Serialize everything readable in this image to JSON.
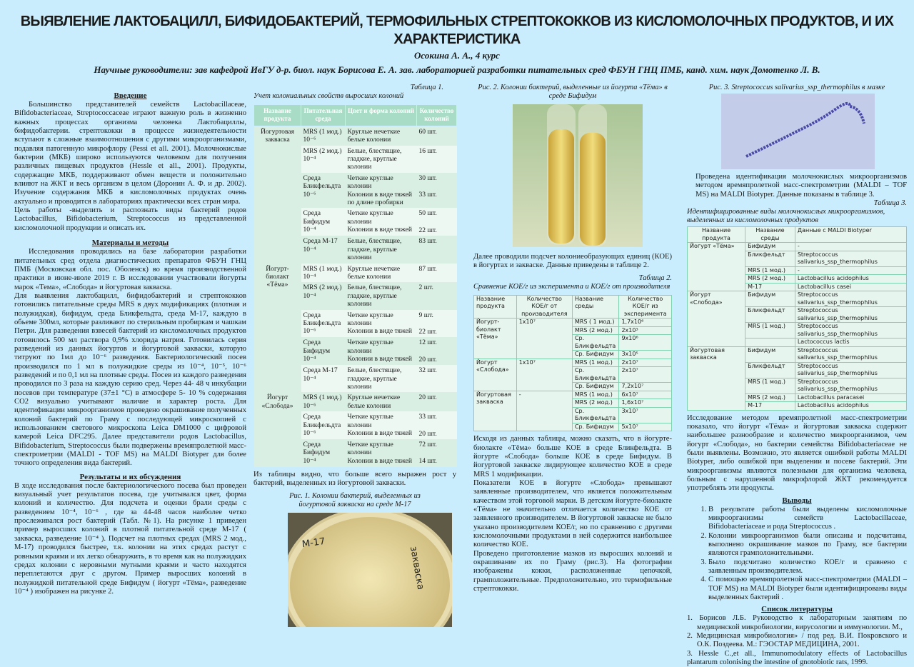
{
  "header": {
    "title": "ВЫЯВЛЕНИЕ ЛАКТОБАЦИЛЛ, БИФИДОБАКТЕРИЙ, ТЕРМОФИЛЬНЫХ СТРЕПТОКОККОВ ИЗ КИСЛОМОЛОЧНЫХ ПРОДУКТОВ, И ИХ ХАРАКТЕРИСТИКА",
    "author": "Осокина А. А., 4 курс",
    "supervisors": "Научные руководители: зав кафедрой ИвГУ  д-р. биол. наук   Борисова Е. А. зав. лабораторией разработки питательных сред ФБУН ГНЦ ПМБ, канд. хим. наук  Домотенко Л. В."
  },
  "intro": {
    "heading": "Введение",
    "p1": "Большинство представителей семейств Lactobacillaceae, Bifidobacteriaceae, Streptococcaceae играют важную роль в жизненно важных процессах организма человека Лактобациллы, бифидобактерии. стрептококки в процессе жизнедеятельности вступают в сложные взаимоотношения с другими микроорганизмами, подавляя патогенную микрофлору (Pessi et all. 2001). Молочнокислые бактерии (МКБ) широко используются человеком для получения различных пищевых продуктов (Hessle et all., 2001). Продукты, содержащие МКБ, поддерживают обмен веществ и положительно влияют на ЖКТ и весь организм в целом (Доронин А. Ф. и др. 2002). Изучение содержания МКБ в кисломолочных продуктах очень актуально и проводится в лабораториях практически всех стран мира.",
    "p2": "Цель работы -выделить и распознать виды бактерий родов Lactobacillus, Bifidobacterium, Streptococcus из представленной кисломолочной продукции и описать их."
  },
  "methods": {
    "heading": "Материалы и методы",
    "p1": "Исследования проводились на базе лаборатории разработки питательных сред отдела диагностических препаратов ФБУН ГНЦ ПМБ (Московская обл. пос. Оболенск) во время производственной практики в июне-июле 2019 г. В исследовании участвовали йогурты марок «Тема», «Слобода» и йогуртовая закваска.",
    "p2": "Для выявления лактобацилл, бифидобактерий и стрептококков готовились питательные среды MRS в двух модификациях (плотная и полужидкая), бифидум, среда Бликфельдта, среда М-17, каждую в обьеме 300мл, которые разливают по стерильным пробиркам и чашкам Петри. Для разведения взвесей бактерий из кисломолочных продуктов готовилось 500 мл раствора 0,9% хлорида натрия. Готовилась серия разведений из данных йогуртов и йогуртовой закваски, которую титруют по 1мл до 10⁻⁶ разведения. Бактериологический посев производился по 1 мл в полужидкие среды из 10⁻⁴, 10⁻⁵, 10⁻⁶ разведений и по 0,1 мл на плотные среды. Посев из каждого разведения проводился по 3 раза на каждую серию сред. Через 44- 48 ч инкубации посевов при температуре (37±1 °C) в атмосфере 5- 10 % содержания СО2 визуально учитывают наличие и характер роста. Для идентификации микроорганизмов проведено окрашивание полученных колоний бактерий по Граму с последующей микроскопией с использованием светового микроскопа Leica DM1000 с цифровой камерой Leica DFC295. Далее представители родов Lactobacillus, Bifidobacterium, Streptococcus были подвержены времяпролетной масс-спектрометрии (MALDI - TOF MS) на MALDI Biotyper для более точного определения вида бактерий."
  },
  "results": {
    "heading": "Результаты и их обсуждения",
    "p1": "В ходе исследования после бактериологического посева был проведен визуальный учет результатов посева, где учитывался цвет, форма колоний и количество. Для подсчета и оценки брали среды с разведением 10⁻⁴, 10⁻⁶ , где за 44-48 часов наиболее четко прослеживался рост бактерий (Табл. №1). На рисунке 1 приведен пример выросших колоний в плотной питательной среде М-17 ( закваска, разведение 10⁻⁴ ). Подсчет на плотных средах (MRS 2 мод., М-17) проводился  быстрее, т.к. колонии на этих средах растут с ровными краями и их легко обнаружить, в то время как на полужидких средах колонии с неровными мутными краями и часто находятся переплетаются друг с другом. Пример выросших колоний в полужидкой питательной среде Бифидум ( йогурт «Тёма», разведение 10⁻⁴ ) изображен на рисунке 2."
  },
  "table1": {
    "label": "Таблица 1.",
    "caption": "Учет колониальных свойств выросших колоний",
    "headers": [
      "Название продукта",
      "Питательная среда",
      "Цвет и форма колоний",
      "Количество колоний"
    ],
    "groups": [
      {
        "product": "Йогуртовая закваска",
        "rows": [
          {
            "medium": "MRS (1 мод.) 10⁻⁶",
            "desc": [
              "Круглые  нечеткие белые колонии"
            ],
            "count": [
              "60 шт."
            ]
          },
          {
            "medium": "MRS (2 мод.) 10⁻⁴",
            "desc": [
              "Белые, блестящие, гладкие, круглые колонии"
            ],
            "count": [
              "16 шт."
            ]
          },
          {
            "medium": "Среда Бликфельдта 10⁻⁶",
            "desc": [
              "Четкие круглые колонии",
              "Колонии в виде тяжей по длине пробирки"
            ],
            "count": [
              "30 шт.",
              "33 шт."
            ]
          },
          {
            "medium": "Среда Бифидум 10⁻⁴",
            "desc": [
              "Четкие круглые колонии",
              "Колонии в виде тяжей"
            ],
            "count": [
              "50 шт.",
              "22 шт."
            ]
          },
          {
            "medium": "Среда М-17 10⁻⁴",
            "desc": [
              "Белые, блестящие, гладкие, круглые колонии"
            ],
            "count": [
              "83 шт."
            ]
          }
        ]
      },
      {
        "product": "Йогурт-биолакт «Тёма»",
        "rows": [
          {
            "medium": "MRS (1 мод.) 10⁻⁴",
            "desc": [
              "Круглые  нечеткие белые колонии"
            ],
            "count": [
              "87 шт."
            ]
          },
          {
            "medium": "MRS (2 мод.) 10⁻⁴",
            "desc": [
              "Белые, блестящие, гладкие, круглые колонии"
            ],
            "count": [
              "2 шт."
            ]
          },
          {
            "medium": "Среда Бликфельдта 10⁻⁶",
            "desc": [
              "Четкие круглые колонии",
              "Колонии в виде тяжей"
            ],
            "count": [
              "9 шт.",
              "22 шт."
            ]
          },
          {
            "medium": "Среда Бифидум 10⁻⁴",
            "desc": [
              "Четкие круглые колонии",
              "Колонии в виде тяжей"
            ],
            "count": [
              "12 шт.",
              "20 шт."
            ]
          },
          {
            "medium": "Среда М-17 10⁻⁴",
            "desc": [
              "Белые, блестящие, гладкие, круглые колонии"
            ],
            "count": [
              "32 шт."
            ]
          }
        ]
      },
      {
        "product": "Йогурт «Слобода»",
        "rows": [
          {
            "medium": "MRS (1 мод.) 10⁻⁶",
            "desc": [
              "Круглые  нечеткие белые колонии"
            ],
            "count": [
              "20 шт."
            ]
          },
          {
            "medium": "Среда Бликфельдта 10⁻⁶",
            "desc": [
              "Четкие круглые колонии",
              "Колонии в виде тяжей"
            ],
            "count": [
              "33 шт.",
              "20 шт."
            ]
          },
          {
            "medium": "Среда Бифидум 10⁻⁴",
            "desc": [
              "Четкие круглые колонии",
              "Колонии в виде тяжей"
            ],
            "count": [
              "72 шт.",
              "14 шт."
            ]
          }
        ]
      }
    ]
  },
  "col2": {
    "after_table": "Из таблицы видно, что  больше всего выражен рост у бактерий, выделенных из йогуртовой закваски.",
    "fig1_caption": "Рис.  1.  Колонии бактерий, выделенных из йогуртовой закваски на среде М-17",
    "fig1_labels": [
      "М-17",
      "закваска"
    ]
  },
  "col3": {
    "fig2_caption": "Рис. 2. Колонии бактерий, выделенные из йогурта «Тёма» в среде Бифидум",
    "p1": "Далее проводили  подсчет колониеобразующих единиц (КОЕ) в йогуртах и закваске. Данные приведены в таблице 2.",
    "table2_label": "Таблица 2.",
    "table2_caption": "Сравнение КОЕ/г из эксперимента и КОЕ/г от производителя",
    "p2": "Исходя из данных таблицы, можно сказать, что в йогурте-биолакте  «Тёма» больше  КОЕ в среде Бликфельдта. В йогурте «Слобода» больше КОЕ в среде Бифидум. В йогуртовой закваске лидирующее количество КОЕ в среде MRS 1 модификации.",
    "p3": "Показатели КОЕ в йогурте «Слобода» превышают заявленные производителем, что является положительным качеством этой торговой марки. В детском йогурте-биолакте «Тёма» не значительно отличается количество КОЕ от заявленного производителем. В йогуртовой закваске не было указано производителем КОЕ/г,  но по сравнению с другими кисломолочными продуктами в ней содержится наибольшее количество КОЕ.",
    "p4": "Проведено приготовление мазков из выросших колоний и окрашивание их по Граму (рис.3). На фотографии изображены кокки, расположенные цепочкой, грамположительные. Предположительно, это термофильные стрептококки."
  },
  "table2": {
    "headers": [
      "Название продукта",
      "Количество КОЕ/г от производителя",
      "Название среды",
      "Количество КОЕ/г из эксперимента"
    ],
    "groups": [
      {
        "product": "Йогурт-биолакт «Тёма»",
        "declared": "1x10⁷",
        "rows": [
          [
            "MRS ( 1 мод.)",
            "1,7x10⁶"
          ],
          [
            "MRS (2 мод.)",
            "2x10³"
          ],
          [
            "Ср. Бликфельдта",
            "9x10⁶"
          ],
          [
            "Ср. Бифидум",
            "3x10⁵"
          ]
        ]
      },
      {
        "product": "Йогурт «Слобода»",
        "declared": "1x10⁷",
        "rows": [
          [
            "MRS (1 мод.)",
            "2x10⁷"
          ],
          [
            "Ср. Бликфельдта",
            "2x10⁷"
          ],
          [
            "Ср. Бифидум",
            "7,2x10⁷"
          ]
        ]
      },
      {
        "product": "Йогуртовая закваска",
        "declared": "-",
        "rows": [
          [
            "MRS (1 мод.)",
            "6x10⁷"
          ],
          [
            "MRS (2 мод.)",
            "1,6x10⁷"
          ],
          [
            "Ср. Бликфельдта",
            "3x10⁷"
          ],
          [
            "Ср. Бифидум",
            "5x10⁷"
          ]
        ]
      }
    ]
  },
  "col4": {
    "fig3_caption": "Рис. 3. Streptococcus salivarius_ssp_thermophilus в мазке",
    "p1": "Проведена идентификация молочнокислых микроорганизмов методом времяпролетной масс-спектрометрии (MALDI – TOF MS) на MALDI Biotyper. Данные показаны в таблице 3.",
    "table3_label": "Таблица 3.",
    "table3_caption": "Идентифицированные виды молочнокислых микроорганизмов, выделенных из кисломолочных продуктов",
    "p2": "Исследование методом времяпролетной масс-спектрометрии показало, что  йогурт «Тёма» и йогуртовая закваска содержит наибольшее разнообразие и количество микроорганизмов, чем йогурт «Слобода», но бактерии семейства Bifidobacteriaceae не были выявлены. Возможно, это является ошибкой работы MALDI Biotyper, либо ошибкой при выделении и посеве бактерий. Эти микроорганизмы являются полезными для организма человека, больным с нарушенной микрофлорой ЖКТ рекомендуется употреблять эти продукты.",
    "conclusions_heading": "Выводы",
    "conclusions": [
      "В результате работы были выделены кисломолочные микроорганизмы семейств Lactobacillaceae, Bifidobacteriaceae и рода Streptococcus .",
      "Колонии микроорганизмов были описаны и подсчитаны, выполнено окрашивание мазков по Граму, все бактерии являются грамположительными.",
      "Было подсчитано количество КОЕ/г и сравнено с заявленным производителем.",
      "С помощью времяпролетной масс-спектрометрии (MALDI – TOF MS) на MALDI Biotyper были идентифицированы виды выделенных бактерий ."
    ],
    "refs_heading": "Список литературы",
    "refs": [
      "1. Борисов Л.Б. Руководство к лабораторным занятиям по медицинской микробиологии, вирусологии и иммунологии. М.,",
      "2. Медицинская микробиология» /   под  ред. В.И. Покровского и О.К. Поздеева. М.: ГЭОСТАР МЕДИЦИНА, 2001.",
      "3. Hessle C.,et all., Immunomodulatory effects of Lactobacillus plantarum colonising the intestine of gnotobiotic rats, 1999."
    ]
  },
  "table3": {
    "headers": [
      "Название продукта",
      "Название среды",
      "Данные с MALDI Biotyper"
    ],
    "groups": [
      {
        "product": "Йогурт «Тёма»",
        "rows": [
          [
            "Бифидум",
            "-"
          ],
          [
            "Бликфельдт",
            "Streptococcus salivarius_ssp_thermophilus"
          ],
          [
            "MRS (1 мод.)",
            "-"
          ],
          [
            "MRS (2 мод.)",
            "Lactobacillus acidophilus"
          ],
          [
            "М-17",
            "Lactobacillus casei"
          ]
        ]
      },
      {
        "product": "Йогурт «Слобода»",
        "rows": [
          [
            "Бифидум",
            "Streptococcus salivarius_ssp_thermophilus"
          ],
          [
            "Бликфельдт",
            "Streptococcus salivarius_ssp_thermophilus"
          ],
          [
            "MRS (1 мод.)",
            "Streptococcus salivarius_ssp_thermophilus"
          ],
          [
            "",
            "Lactococcus lactis"
          ]
        ]
      },
      {
        "product": "Йогуртовая закваска",
        "rows": [
          [
            "Бифидум",
            "Streptococcus salivarius_ssp_thermophilus"
          ],
          [
            "Бликфельдт",
            "Streptococcus salivarius_ssp_thermophilus"
          ],
          [
            "MRS (1 мод.)",
            "Streptococcus salivarius_ssp_thermophilus"
          ],
          [
            "MRS (2 мод.)",
            "Lactobacillus paracasei"
          ],
          [
            "М-17",
            "Lactobacillus acidophilus"
          ]
        ]
      }
    ]
  },
  "colors": {
    "background": "#c9edfd",
    "table_header": "#a9dcc6",
    "table_border": "#7fd3b0"
  }
}
